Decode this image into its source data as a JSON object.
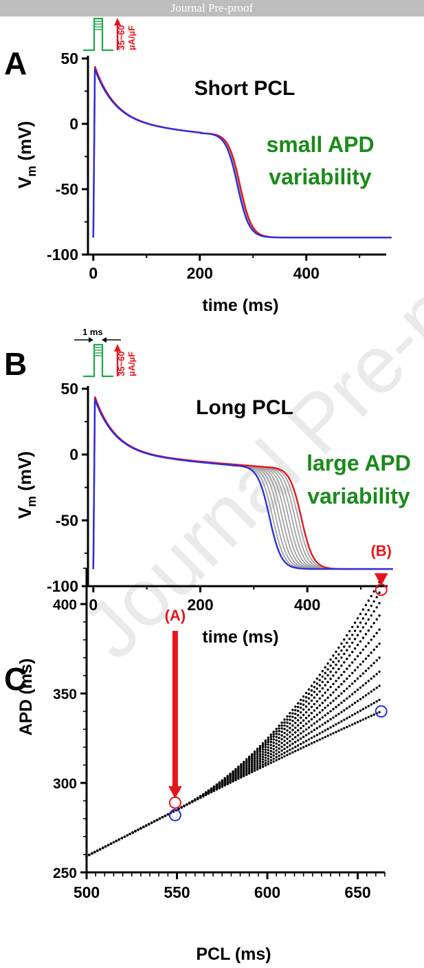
{
  "banner": "Journal Pre-proof",
  "watermark": "Journal Pre-proof",
  "colors": {
    "red": "#e8141b",
    "blue": "#2a2ee0",
    "gray": "#a0a0a0",
    "green": "#1a8a1a",
    "stim_green": "#1fa84a",
    "black": "#000000"
  },
  "stimulus": {
    "amplitude_label_1": "35~60",
    "amplitude_label_2": "µA/µF",
    "duration_label": "1 ms"
  },
  "chart_data": [
    {
      "panel": "A",
      "type": "line",
      "title": "Short PCL",
      "annotation": [
        "small APD",
        "variability"
      ],
      "xlabel": "time (ms)",
      "ylabel": "V",
      "ylabel_sub": "m",
      "ylabel_unit": " (mV)",
      "xlim": [
        -10,
        550
      ],
      "ylim": [
        -100,
        50
      ],
      "xticks": [
        0,
        200,
        400
      ],
      "yticks": [
        -100,
        -50,
        0,
        50
      ],
      "ap": {
        "vrest": -87,
        "peak_red": 44,
        "peak_blue": 42,
        "plateau": 1,
        "apd_blue": 282,
        "apd_red": 287,
        "n_gray": 3
      }
    },
    {
      "panel": "B",
      "type": "line",
      "title": "Long PCL",
      "annotation": [
        "large APD",
        "variability"
      ],
      "xlabel": "time (ms)",
      "ylabel": "V",
      "ylabel_sub": "m",
      "ylabel_unit": " (mV)",
      "xlim": [
        -10,
        550
      ],
      "ylim": [
        -100,
        50
      ],
      "xticks": [
        0,
        200,
        400
      ],
      "yticks": [
        -100,
        -50,
        0,
        50
      ],
      "ap": {
        "vrest": -87,
        "peak_red": 44,
        "peak_blue": 42,
        "plateau": 1,
        "apd_blue": 343,
        "apd_red": 405,
        "n_gray": 9
      }
    },
    {
      "panel": "C",
      "type": "scatter",
      "xlabel": "PCL (ms)",
      "ylabel": "APD (ms)",
      "xlim": [
        500,
        665
      ],
      "ylim": [
        250,
        420
      ],
      "xticks": [
        500,
        550,
        600,
        650
      ],
      "yticks": [
        250,
        300,
        350,
        400
      ],
      "branches": {
        "start": [
          500,
          259
        ],
        "mid": [
          550,
          285
        ],
        "end_pcl": 663,
        "end_apds": [
          340,
          347,
          355,
          363,
          371,
          379,
          387,
          395,
          402,
          408,
          414
        ]
      },
      "markers": [
        {
          "label": "(A)",
          "pcl": 549,
          "apd_red": 289,
          "apd_blue": 282
        },
        {
          "label": "(B)",
          "pcl": 663,
          "apd_red": 408,
          "apd_blue": 340
        }
      ]
    }
  ],
  "panel_letters": [
    "A",
    "B",
    "C"
  ]
}
